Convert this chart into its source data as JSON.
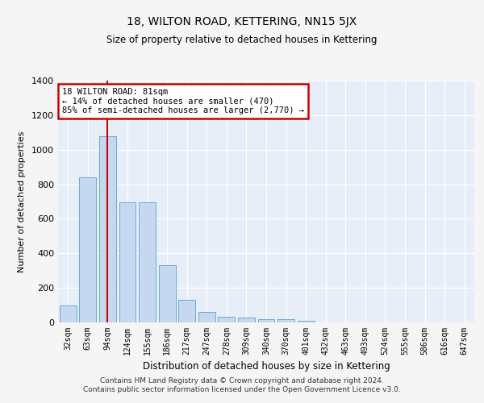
{
  "title": "18, WILTON ROAD, KETTERING, NN15 5JX",
  "subtitle": "Size of property relative to detached houses in Kettering",
  "xlabel": "Distribution of detached houses by size in Kettering",
  "ylabel": "Number of detached properties",
  "categories": [
    "32sqm",
    "63sqm",
    "94sqm",
    "124sqm",
    "155sqm",
    "186sqm",
    "217sqm",
    "247sqm",
    "278sqm",
    "309sqm",
    "340sqm",
    "370sqm",
    "401sqm",
    "432sqm",
    "463sqm",
    "493sqm",
    "524sqm",
    "555sqm",
    "586sqm",
    "616sqm",
    "647sqm"
  ],
  "values": [
    100,
    840,
    1080,
    695,
    695,
    330,
    130,
    60,
    35,
    30,
    18,
    18,
    10,
    0,
    0,
    0,
    0,
    0,
    0,
    0,
    0
  ],
  "bar_color": "#c5d8f0",
  "bar_edge_color": "#6aaad4",
  "plot_bg_color": "#e8eef8",
  "fig_bg_color": "#f5f5f5",
  "grid_color": "#ffffff",
  "vline_color": "#cc0000",
  "vline_x": 2.0,
  "annotation_text": "18 WILTON ROAD: 81sqm\n← 14% of detached houses are smaller (470)\n85% of semi-detached houses are larger (2,770) →",
  "annotation_box_edgecolor": "#cc0000",
  "ylim": [
    0,
    1400
  ],
  "yticks": [
    0,
    200,
    400,
    600,
    800,
    1000,
    1200,
    1400
  ],
  "footer_line1": "Contains HM Land Registry data © Crown copyright and database right 2024.",
  "footer_line2": "Contains public sector information licensed under the Open Government Licence v3.0."
}
